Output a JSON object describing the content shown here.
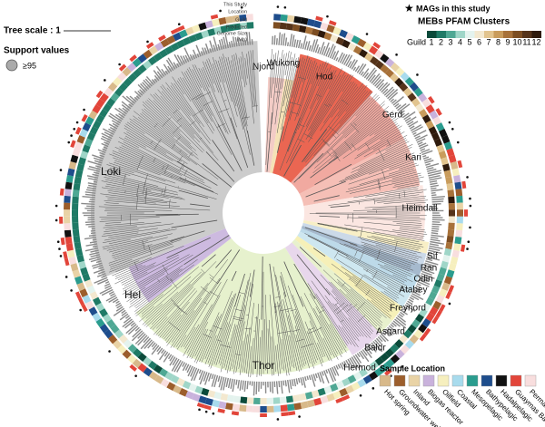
{
  "tree_scale": "Tree scale : 1",
  "support": {
    "title": "Support values",
    "label": "≥95"
  },
  "mags_legend": "MAGs in this study",
  "pfam_legend": {
    "title": "MEBs PFAM Clusters",
    "guild_label": "Guild",
    "guilds": [
      {
        "label": "1",
        "color": "#0b4a3a"
      },
      {
        "label": "2",
        "color": "#1f7a66"
      },
      {
        "label": "3",
        "color": "#4fa894"
      },
      {
        "label": "4",
        "color": "#9fd6c8"
      },
      {
        "label": "5",
        "color": "#e4f3ee"
      },
      {
        "label": "6",
        "color": "#f3e8cf"
      },
      {
        "label": "7",
        "color": "#e2c48e"
      },
      {
        "label": "8",
        "color": "#c99c5c"
      },
      {
        "label": "9",
        "color": "#a8723a"
      },
      {
        "label": "10",
        "color": "#7d4e22"
      },
      {
        "label": "11",
        "color": "#55331a"
      },
      {
        "label": "12",
        "color": "#2e1a0c"
      }
    ]
  },
  "ring_labels": {
    "study": "This Study",
    "location": "Location",
    "guild": "Guild",
    "genome": [
      "Predicted",
      "Genome Size",
      "(Mb)"
    ]
  },
  "clades": [
    {
      "name": "Njord",
      "color": "#f2c7c0"
    },
    {
      "name": "Wukong",
      "color": "#f4dfae"
    },
    {
      "name": "Hod",
      "color": "#e8553f"
    },
    {
      "name": "Gerd",
      "color": "#f0a096"
    },
    {
      "name": "Kari",
      "color": "#f4b8ae"
    },
    {
      "name": "Heimdall",
      "color": "#fbe3de"
    },
    {
      "name": "Sif",
      "color": "#f7edc0"
    },
    {
      "name": "Ran",
      "color": "#c5d5e6"
    },
    {
      "name": "Odin",
      "color": "#9cb3c9"
    },
    {
      "name": "Atabey",
      "color": "#b6d6e7"
    },
    {
      "name": "Freyrjord",
      "color": "#c9e4ee"
    },
    {
      "name": "Asgard",
      "color": "#f5eeb0"
    },
    {
      "name": "Baldr",
      "color": "#e6f0c8"
    },
    {
      "name": "Hermod",
      "color": "#e6d3ea"
    },
    {
      "name": "Thor",
      "color": "#e3efc8"
    },
    {
      "name": "Hel",
      "color": "#c8b2dd"
    },
    {
      "name": "Loki",
      "color": "#c6c6c6"
    }
  ],
  "sample_location": {
    "title": "Sample Location",
    "items": [
      {
        "label": "Hot spring",
        "color": "#d8b98a"
      },
      {
        "label": "Groundwater well",
        "color": "#9c5e2c"
      },
      {
        "label": "Inland",
        "color": "#e9d3a6"
      },
      {
        "label": "Biogas reactor",
        "color": "#c9b2dc"
      },
      {
        "label": "Oilfield",
        "color": "#f6efbe"
      },
      {
        "label": "Coastal",
        "color": "#a8dbed"
      },
      {
        "label": "Mesopelagic",
        "color": "#2a9c8e"
      },
      {
        "label": "Bathypelagic",
        "color": "#1e4d8c"
      },
      {
        "label": "Hadalpelagic",
        "color": "#111111"
      },
      {
        "label": "Guaymas Basin",
        "color": "#e2453a"
      },
      {
        "label": "Permafrost",
        "color": "#f8dede"
      }
    ]
  }
}
